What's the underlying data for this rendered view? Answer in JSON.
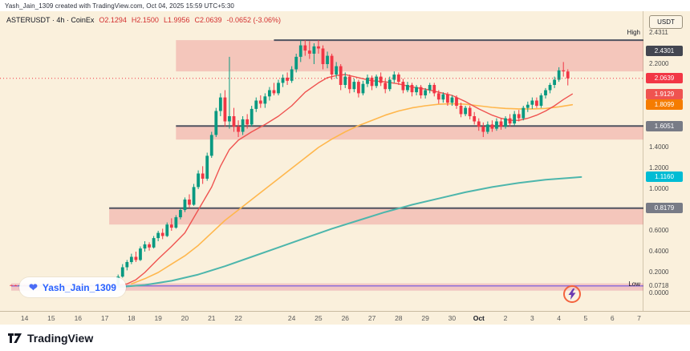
{
  "topbar": {
    "text": "Yash_Jain_1309 created with TradingView.com, Oct 04, 2025 15:59 UTC+5:30"
  },
  "legend": {
    "title": "ASTERUSDT · 4h · CoinEx",
    "o": "O2.1294",
    "h": "H2.1500",
    "l": "L1.9956",
    "c": "C2.0639",
    "change": "-0.0652 (-3.06%)"
  },
  "axis": {
    "currency": "USDT",
    "ticks": [
      {
        "label": "2.2000",
        "price": 2.2
      },
      {
        "label": "1.4000",
        "price": 1.4
      },
      {
        "label": "1.2000",
        "price": 1.2
      },
      {
        "label": "1.0000",
        "price": 1.0
      },
      {
        "label": "0.6000",
        "price": 0.6
      },
      {
        "label": "0.4000",
        "price": 0.4
      },
      {
        "label": "0.2000",
        "price": 0.2
      },
      {
        "label": "0.0000",
        "price": 0.0
      }
    ],
    "badges": [
      {
        "label": "2.4301",
        "price": 2.4301,
        "bg": "#434651",
        "shift": 13
      },
      {
        "label": "2.0639",
        "price": 2.0639,
        "bg": "#f23645"
      },
      {
        "label": "1.9129",
        "price": 1.9129,
        "bg": "#ef5350"
      },
      {
        "label": "1.8099",
        "price": 1.8099,
        "bg": "#f57c00"
      },
      {
        "label": "1.6051",
        "price": 1.6051,
        "bg": "#787b86"
      },
      {
        "label": "1.1160",
        "price": 1.116,
        "bg": "#00bcd4"
      },
      {
        "label": "0.8179",
        "price": 0.8179,
        "bg": "#787b86"
      }
    ]
  },
  "watermark": {
    "name": "Yash_Jain_1309"
  },
  "icons": {
    "heart": "❤",
    "lightning": "lightning-icon",
    "tradingview": "tradingview-icon"
  },
  "footer": {
    "brand": "TradingView"
  },
  "chart_data": {
    "type": "candlestick",
    "symbol": "ASTERUSDT",
    "interval": "4h",
    "exchange": "CoinEx",
    "quote_currency": "USDT",
    "last_bar": {
      "open": 2.1294,
      "high": 2.15,
      "low": 1.9956,
      "close": 2.0639,
      "change": -0.0652,
      "change_pct": -3.06
    },
    "current_price_line": {
      "price": 2.0639,
      "color": "#f23645"
    },
    "high_marker": {
      "label": "High",
      "value": "2.4311",
      "price": 2.4311
    },
    "low_marker": {
      "label": "Low",
      "value": "0.0718",
      "price": 0.0718
    },
    "y_axis": {
      "min": 0.0,
      "max": 2.5
    },
    "colors": {
      "up": "#089981",
      "down": "#f23645"
    },
    "x_labels": [
      {
        "label": "14",
        "index": 3
      },
      {
        "label": "15",
        "index": 9
      },
      {
        "label": "16",
        "index": 15
      },
      {
        "label": "17",
        "index": 21
      },
      {
        "label": "18",
        "index": 27
      },
      {
        "label": "19",
        "index": 33
      },
      {
        "label": "20",
        "index": 39
      },
      {
        "label": "21",
        "index": 45
      },
      {
        "label": "22",
        "index": 51
      },
      {
        "label": "24",
        "index": 63
      },
      {
        "label": "25",
        "index": 69
      },
      {
        "label": "26",
        "index": 75
      },
      {
        "label": "27",
        "index": 81
      },
      {
        "label": "28",
        "index": 87
      },
      {
        "label": "29",
        "index": 93
      },
      {
        "label": "30",
        "index": 99
      },
      {
        "label": "Oct",
        "index": 105,
        "bold": true
      },
      {
        "label": "2",
        "index": 111
      },
      {
        "label": "3",
        "index": 117
      },
      {
        "label": "4",
        "index": 123
      },
      {
        "label": "5",
        "index": 129
      },
      {
        "label": "6",
        "index": 135
      },
      {
        "label": "7",
        "index": 141
      }
    ],
    "zones": [
      {
        "top": 2.4301,
        "bottom": 2.13,
        "start_index": 37,
        "fill": "rgba(233,113,120,0.33)"
      },
      {
        "top": 1.6051,
        "bottom": 1.475,
        "start_index": 37,
        "fill": "rgba(233,113,120,0.33)"
      },
      {
        "top": 0.8179,
        "bottom": 0.66,
        "start_index": 22,
        "fill": "rgba(233,113,120,0.33)"
      },
      {
        "top": 0.095,
        "bottom": 0.025,
        "start_index": 0,
        "fill": "rgba(226,120,150,0.35)"
      }
    ],
    "hlines": [
      {
        "price": 2.4301,
        "start_index": 59,
        "color": "#4f5360",
        "width": 2
      },
      {
        "price": 1.6051,
        "start_index": 37,
        "color": "#4f5360",
        "width": 2
      },
      {
        "price": 0.8179,
        "start_index": 22,
        "color": "#4f5360",
        "width": 2
      },
      {
        "price": 0.0718,
        "start_index": 0,
        "color": "#8e6fd8",
        "width": 1.5
      }
    ],
    "overlays": [
      {
        "name": "ma-slow-teal",
        "color": "#4db6ac",
        "width": 2,
        "points": [
          [
            24,
            0.06
          ],
          [
            30,
            0.08
          ],
          [
            36,
            0.12
          ],
          [
            42,
            0.18
          ],
          [
            48,
            0.26
          ],
          [
            54,
            0.35
          ],
          [
            60,
            0.44
          ],
          [
            66,
            0.53
          ],
          [
            72,
            0.62
          ],
          [
            78,
            0.7
          ],
          [
            84,
            0.78
          ],
          [
            90,
            0.85
          ],
          [
            96,
            0.91
          ],
          [
            102,
            0.97
          ],
          [
            108,
            1.02
          ],
          [
            114,
            1.06
          ],
          [
            120,
            1.09
          ],
          [
            126,
            1.11
          ],
          [
            128,
            1.116
          ]
        ]
      },
      {
        "name": "ma-mid-orange",
        "color": "#ffb74d",
        "width": 1.6,
        "points": [
          [
            27,
            0.09
          ],
          [
            30,
            0.14
          ],
          [
            33,
            0.2
          ],
          [
            36,
            0.28
          ],
          [
            39,
            0.36
          ],
          [
            42,
            0.46
          ],
          [
            45,
            0.58
          ],
          [
            48,
            0.7
          ],
          [
            51,
            0.8
          ],
          [
            54,
            0.9
          ],
          [
            57,
            1.0
          ],
          [
            60,
            1.1
          ],
          [
            63,
            1.2
          ],
          [
            66,
            1.3
          ],
          [
            69,
            1.4
          ],
          [
            72,
            1.48
          ],
          [
            75,
            1.55
          ],
          [
            78,
            1.61
          ],
          [
            81,
            1.66
          ],
          [
            84,
            1.71
          ],
          [
            87,
            1.75
          ],
          [
            90,
            1.78
          ],
          [
            93,
            1.8
          ],
          [
            96,
            1.815
          ],
          [
            99,
            1.82
          ],
          [
            102,
            1.815
          ],
          [
            105,
            1.8
          ],
          [
            108,
            1.785
          ],
          [
            111,
            1.775
          ],
          [
            114,
            1.77
          ],
          [
            117,
            1.77
          ],
          [
            120,
            1.775
          ],
          [
            123,
            1.79
          ],
          [
            126,
            1.8099
          ]
        ]
      },
      {
        "name": "ma-fast-red",
        "color": "#ef5350",
        "width": 1.4,
        "points": [
          [
            24,
            0.078
          ],
          [
            26,
            0.09
          ],
          [
            28,
            0.13
          ],
          [
            30,
            0.2
          ],
          [
            33,
            0.33
          ],
          [
            36,
            0.45
          ],
          [
            39,
            0.58
          ],
          [
            42,
            0.8
          ],
          [
            45,
            1.02
          ],
          [
            47,
            1.22
          ],
          [
            49,
            1.38
          ],
          [
            51,
            1.47
          ],
          [
            54,
            1.55
          ],
          [
            57,
            1.62
          ],
          [
            60,
            1.7
          ],
          [
            63,
            1.8
          ],
          [
            66,
            1.93
          ],
          [
            69,
            2.02
          ],
          [
            71,
            2.07
          ],
          [
            73,
            2.09
          ],
          [
            75,
            2.1
          ],
          [
            78,
            2.07
          ],
          [
            81,
            2.04
          ],
          [
            84,
            2.03
          ],
          [
            87,
            2.01
          ],
          [
            90,
            1.98
          ],
          [
            93,
            1.96
          ],
          [
            96,
            1.93
          ],
          [
            99,
            1.9
          ],
          [
            102,
            1.84
          ],
          [
            105,
            1.77
          ],
          [
            108,
            1.71
          ],
          [
            110,
            1.68
          ],
          [
            112,
            1.66
          ],
          [
            114,
            1.66
          ],
          [
            116,
            1.68
          ],
          [
            118,
            1.71
          ],
          [
            120,
            1.75
          ],
          [
            122,
            1.8
          ],
          [
            124,
            1.86
          ],
          [
            126,
            1.9129
          ]
        ]
      }
    ],
    "candles": [
      [
        0.078,
        0.082,
        0.073,
        0.076
      ],
      [
        0.076,
        0.08,
        0.072,
        0.075
      ],
      [
        0.075,
        0.079,
        0.071,
        0.077
      ],
      [
        0.077,
        0.081,
        0.073,
        0.074
      ],
      [
        0.074,
        0.078,
        0.07,
        0.076
      ],
      [
        0.076,
        0.08,
        0.072,
        0.078
      ],
      [
        0.078,
        0.083,
        0.074,
        0.075
      ],
      [
        0.075,
        0.079,
        0.071,
        0.076
      ],
      [
        0.076,
        0.081,
        0.072,
        0.074
      ],
      [
        0.074,
        0.079,
        0.07,
        0.077
      ],
      [
        0.077,
        0.082,
        0.073,
        0.075
      ],
      [
        0.075,
        0.08,
        0.071,
        0.078
      ],
      [
        0.078,
        0.082,
        0.074,
        0.076
      ],
      [
        0.076,
        0.08,
        0.072,
        0.075
      ],
      [
        0.075,
        0.079,
        0.072,
        0.077
      ],
      [
        0.077,
        0.081,
        0.073,
        0.076
      ],
      [
        0.076,
        0.08,
        0.072,
        0.074
      ],
      [
        0.074,
        0.078,
        0.071,
        0.076
      ],
      [
        0.076,
        0.081,
        0.073,
        0.078
      ],
      [
        0.078,
        0.082,
        0.074,
        0.077
      ],
      [
        0.077,
        0.081,
        0.072,
        0.075
      ],
      [
        0.075,
        0.08,
        0.071,
        0.076
      ],
      [
        0.076,
        0.082,
        0.072,
        0.078
      ],
      [
        0.078,
        0.084,
        0.073,
        0.08
      ],
      [
        0.075,
        0.18,
        0.072,
        0.16
      ],
      [
        0.16,
        0.28,
        0.15,
        0.25
      ],
      [
        0.25,
        0.32,
        0.22,
        0.3
      ],
      [
        0.3,
        0.38,
        0.28,
        0.35
      ],
      [
        0.35,
        0.4,
        0.3,
        0.32
      ],
      [
        0.32,
        0.45,
        0.31,
        0.43
      ],
      [
        0.43,
        0.5,
        0.4,
        0.47
      ],
      [
        0.47,
        0.49,
        0.41,
        0.44
      ],
      [
        0.44,
        0.55,
        0.43,
        0.53
      ],
      [
        0.53,
        0.6,
        0.5,
        0.58
      ],
      [
        0.58,
        0.62,
        0.52,
        0.55
      ],
      [
        0.55,
        0.68,
        0.54,
        0.66
      ],
      [
        0.66,
        0.72,
        0.6,
        0.63
      ],
      [
        0.63,
        0.75,
        0.62,
        0.73
      ],
      [
        0.73,
        0.82,
        0.71,
        0.8
      ],
      [
        0.8,
        0.92,
        0.78,
        0.9
      ],
      [
        0.9,
        0.95,
        0.82,
        0.85
      ],
      [
        0.85,
        1.05,
        0.84,
        1.02
      ],
      [
        1.02,
        1.18,
        1.0,
        1.15
      ],
      [
        1.15,
        1.22,
        1.05,
        1.1
      ],
      [
        1.1,
        1.35,
        1.08,
        1.32
      ],
      [
        1.32,
        1.55,
        1.3,
        1.52
      ],
      [
        1.52,
        1.78,
        1.5,
        1.75
      ],
      [
        1.75,
        1.92,
        1.7,
        1.88
      ],
      [
        1.88,
        1.95,
        1.6,
        1.65
      ],
      [
        1.65,
        2.27,
        1.58,
        1.7
      ],
      [
        1.7,
        1.78,
        1.55,
        1.6
      ],
      [
        1.6,
        1.66,
        1.5,
        1.55
      ],
      [
        1.55,
        1.7,
        1.52,
        1.67
      ],
      [
        1.67,
        1.72,
        1.58,
        1.62
      ],
      [
        1.62,
        1.8,
        1.6,
        1.77
      ],
      [
        1.77,
        1.88,
        1.74,
        1.85
      ],
      [
        1.85,
        1.9,
        1.78,
        1.82
      ],
      [
        1.82,
        1.92,
        1.78,
        1.89
      ],
      [
        1.89,
        1.98,
        1.85,
        1.95
      ],
      [
        1.95,
        2.02,
        1.9,
        1.92
      ],
      [
        1.92,
        2.05,
        1.9,
        2.02
      ],
      [
        2.02,
        2.1,
        1.98,
        2.07
      ],
      [
        2.07,
        2.12,
        2.0,
        2.04
      ],
      [
        2.04,
        2.18,
        2.02,
        2.15
      ],
      [
        2.15,
        2.3,
        2.12,
        2.27
      ],
      [
        2.27,
        2.43,
        2.22,
        2.38
      ],
      [
        2.38,
        2.4311,
        2.28,
        2.33
      ],
      [
        2.33,
        2.42,
        2.25,
        2.3
      ],
      [
        2.3,
        2.4,
        2.2,
        2.37
      ],
      [
        2.37,
        2.4311,
        2.3,
        2.35
      ],
      [
        2.35,
        2.38,
        2.15,
        2.2
      ],
      [
        2.2,
        2.32,
        2.16,
        2.28
      ],
      [
        2.28,
        2.3,
        2.05,
        2.1
      ],
      [
        2.1,
        2.22,
        2.06,
        2.18
      ],
      [
        2.18,
        2.2,
        1.95,
        2.0
      ],
      [
        2.0,
        2.12,
        1.97,
        2.08
      ],
      [
        2.08,
        2.1,
        1.92,
        1.96
      ],
      [
        1.96,
        2.06,
        1.93,
        2.03
      ],
      [
        2.03,
        2.05,
        1.88,
        1.92
      ],
      [
        1.92,
        2.04,
        1.9,
        2.01
      ],
      [
        2.01,
        2.1,
        1.98,
        2.07
      ],
      [
        2.07,
        2.09,
        1.95,
        1.99
      ],
      [
        1.99,
        2.1,
        1.97,
        2.08
      ],
      [
        2.08,
        2.12,
        1.99,
        2.02
      ],
      [
        2.02,
        2.06,
        1.92,
        1.96
      ],
      [
        1.96,
        2.08,
        1.94,
        2.05
      ],
      [
        2.05,
        2.13,
        2.02,
        2.1
      ],
      [
        2.1,
        2.12,
        2.0,
        2.03
      ],
      [
        2.03,
        2.06,
        1.92,
        1.95
      ],
      [
        1.95,
        2.03,
        1.93,
        2.0
      ],
      [
        2.0,
        2.02,
        1.89,
        1.93
      ],
      [
        1.93,
        2.0,
        1.9,
        1.98
      ],
      [
        1.98,
        2.0,
        1.87,
        1.9
      ],
      [
        1.9,
        1.97,
        1.87,
        1.95
      ],
      [
        1.95,
        2.02,
        1.92,
        2.0
      ],
      [
        2.0,
        2.02,
        1.89,
        1.92
      ],
      [
        1.92,
        1.95,
        1.82,
        1.86
      ],
      [
        1.86,
        1.93,
        1.83,
        1.91
      ],
      [
        1.91,
        1.93,
        1.8,
        1.83
      ],
      [
        1.83,
        1.9,
        1.8,
        1.88
      ],
      [
        1.88,
        1.9,
        1.77,
        1.8
      ],
      [
        1.8,
        1.83,
        1.69,
        1.72
      ],
      [
        1.72,
        1.8,
        1.7,
        1.78
      ],
      [
        1.78,
        1.8,
        1.67,
        1.7
      ],
      [
        1.7,
        1.74,
        1.62,
        1.65
      ],
      [
        1.65,
        1.68,
        1.56,
        1.6
      ],
      [
        1.6,
        1.64,
        1.5,
        1.55
      ],
      [
        1.55,
        1.65,
        1.53,
        1.62
      ],
      [
        1.62,
        1.66,
        1.55,
        1.58
      ],
      [
        1.58,
        1.68,
        1.56,
        1.65
      ],
      [
        1.65,
        1.68,
        1.57,
        1.6
      ],
      [
        1.6,
        1.7,
        1.58,
        1.68
      ],
      [
        1.68,
        1.72,
        1.6,
        1.63
      ],
      [
        1.63,
        1.75,
        1.61,
        1.72
      ],
      [
        1.72,
        1.76,
        1.65,
        1.68
      ],
      [
        1.68,
        1.8,
        1.66,
        1.78
      ],
      [
        1.78,
        1.84,
        1.74,
        1.81
      ],
      [
        1.81,
        1.88,
        1.77,
        1.85
      ],
      [
        1.85,
        1.88,
        1.78,
        1.8
      ],
      [
        1.8,
        1.92,
        1.78,
        1.9
      ],
      [
        1.9,
        1.97,
        1.87,
        1.95
      ],
      [
        1.95,
        2.02,
        1.92,
        2.0
      ],
      [
        2.0,
        2.08,
        1.97,
        2.05
      ],
      [
        2.05,
        2.17,
        2.03,
        2.14
      ],
      [
        2.14,
        2.22,
        2.08,
        2.13
      ],
      [
        2.1294,
        2.15,
        1.9956,
        2.0639
      ]
    ]
  }
}
